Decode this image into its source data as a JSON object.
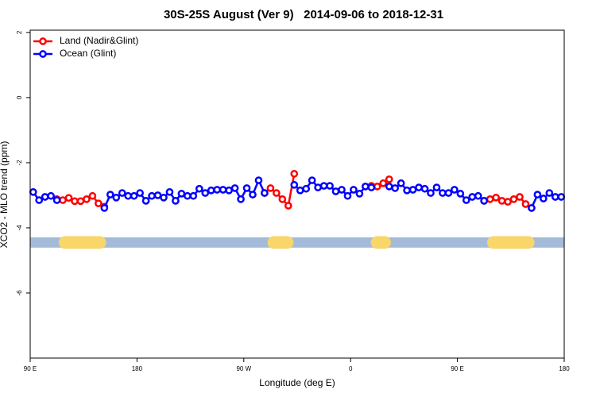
{
  "chart_data": {
    "type": "line",
    "title": "30S-25S August (Ver 9)   2014-09-06 to 2018-12-31",
    "x_label": "Longitude (deg E)",
    "y_label": "XCO2 - MLO trend (ppm)",
    "xlim": [
      90,
      540
    ],
    "xticks": [
      {
        "value": 90,
        "label": "90 E"
      },
      {
        "value": 180,
        "label": "180"
      },
      {
        "value": 270,
        "label": "90 W"
      },
      {
        "value": 360,
        "label": "0"
      },
      {
        "value": 450,
        "label": "90 E"
      },
      {
        "value": 540,
        "label": "180"
      }
    ],
    "ylim": [
      -8,
      2.07
    ],
    "yticks": [
      2,
      0,
      -2,
      -4,
      -6
    ],
    "legend": "top-left",
    "x": [
      92.5,
      97.5,
      102.5,
      107.5,
      112.5,
      117.5,
      122.5,
      127.5,
      132.5,
      137.5,
      142.5,
      147.5,
      152.5,
      157.5,
      162.5,
      167.5,
      172.5,
      177.5,
      182.5,
      187.5,
      192.5,
      197.5,
      202.5,
      207.5,
      212.5,
      217.5,
      222.5,
      227.5,
      232.5,
      237.5,
      242.5,
      247.5,
      252.5,
      257.5,
      262.5,
      267.5,
      272.5,
      277.5,
      282.5,
      287.5,
      292.5,
      297.5,
      302.5,
      307.5,
      312.5,
      317.5,
      322.5,
      327.5,
      332.5,
      337.5,
      342.5,
      347.5,
      352.5,
      357.5,
      362.5,
      367.5,
      372.5,
      377.5,
      382.5,
      387.5,
      392.5,
      397.5,
      402.5,
      407.5,
      412.5,
      417.5,
      422.5,
      427.5,
      432.5,
      437.5,
      442.5,
      447.5,
      452.5,
      457.5,
      462.5,
      467.5,
      472.5,
      477.5,
      482.5,
      487.5,
      492.5,
      497.5,
      502.5,
      507.5,
      512.5,
      517.5,
      522.5,
      527.5,
      532.5,
      537.5
    ],
    "series": [
      {
        "name": "Land (Nadir&Glint)",
        "color": "#ff0000",
        "values": [
          null,
          null,
          null,
          null,
          -3.12,
          -3.15,
          -3.08,
          -3.18,
          -3.18,
          -3.12,
          -3.02,
          -3.25,
          -3.35,
          null,
          null,
          null,
          null,
          null,
          null,
          null,
          null,
          null,
          null,
          null,
          null,
          null,
          null,
          null,
          null,
          null,
          null,
          null,
          null,
          null,
          null,
          null,
          null,
          null,
          null,
          -2.93,
          -2.78,
          -2.93,
          -3.12,
          -3.32,
          -2.34,
          null,
          null,
          null,
          null,
          null,
          null,
          null,
          null,
          null,
          null,
          null,
          null,
          -2.71,
          -2.73,
          -2.63,
          -2.51,
          null,
          null,
          null,
          null,
          null,
          null,
          null,
          null,
          null,
          null,
          null,
          null,
          null,
          null,
          null,
          -3.17,
          -3.12,
          -3.07,
          -3.17,
          -3.2,
          -3.12,
          -3.05,
          -3.27,
          -3.39,
          null,
          null,
          null,
          null,
          null
        ]
      },
      {
        "name": "Ocean (Glint)",
        "color": "#0000ff",
        "values": [
          -2.9,
          -3.15,
          -3.05,
          -3.02,
          -3.15,
          null,
          null,
          null,
          null,
          null,
          null,
          null,
          -3.39,
          -2.98,
          -3.07,
          -2.93,
          -3.02,
          -3.02,
          -2.93,
          -3.17,
          -3.02,
          -3.0,
          -3.07,
          -2.9,
          -3.17,
          -2.95,
          -3.02,
          -3.02,
          -2.8,
          -2.93,
          -2.85,
          -2.83,
          -2.83,
          -2.85,
          -2.78,
          -3.12,
          -2.78,
          -2.98,
          -2.54,
          -2.93,
          null,
          null,
          null,
          null,
          -2.68,
          -2.85,
          -2.8,
          -2.54,
          -2.76,
          -2.71,
          -2.71,
          -2.88,
          -2.83,
          -3.02,
          -2.83,
          -2.95,
          -2.73,
          -2.76,
          null,
          null,
          -2.73,
          -2.78,
          -2.63,
          -2.85,
          -2.83,
          -2.76,
          -2.8,
          -2.93,
          -2.76,
          -2.93,
          -2.93,
          -2.83,
          -2.95,
          -3.15,
          -3.05,
          -3.02,
          -3.17,
          null,
          null,
          null,
          null,
          null,
          null,
          null,
          -3.39,
          -2.98,
          -3.1,
          -2.93,
          -3.05,
          -3.05
        ]
      }
    ],
    "land_mask": {
      "y": -4.45,
      "ocean_color": "#a3bbd9",
      "land_color": "#f8d66a",
      "land": [
        [
          114,
          154
        ],
        [
          290,
          312
        ],
        [
          377,
          394
        ],
        [
          475,
          515
        ]
      ]
    }
  }
}
